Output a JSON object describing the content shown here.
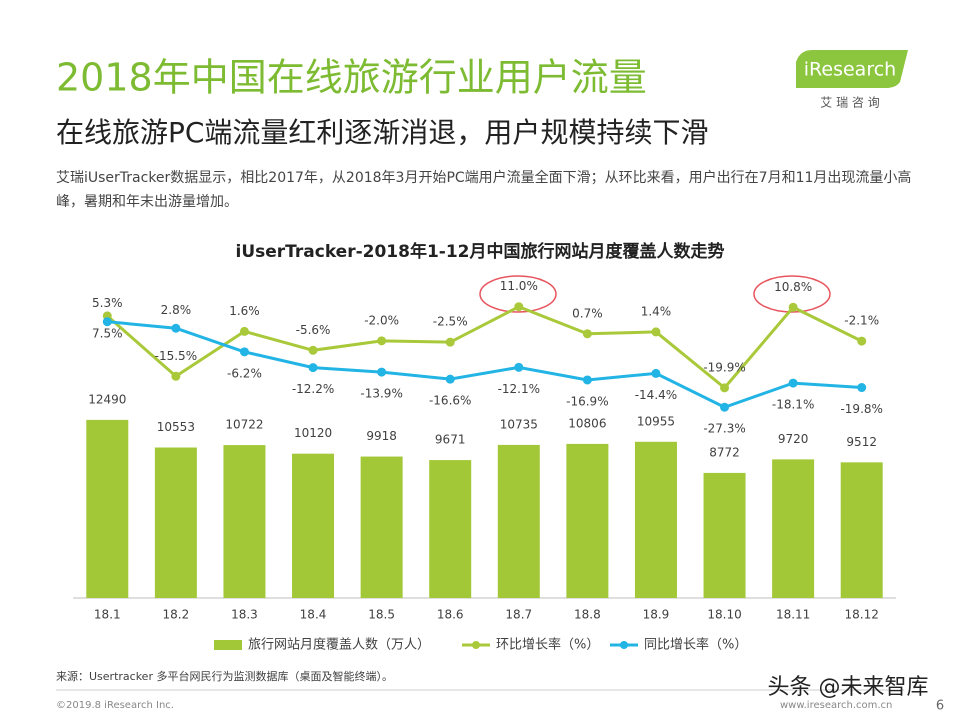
{
  "header": {
    "title": "2018年中国在线旅游行业用户流量",
    "subtitle": "在线旅游PC端流量红利逐渐消退，用户规模持续下滑",
    "description": "艾瑞iUserTracker数据显示，相比2017年，从2018年3月开始PC端用户流量全面下滑；从环比来看，用户出行在7月和11月出现流量小高峰，暑期和年末出游量增加。",
    "logo": "iResearch",
    "logo_sub": "艾 瑞 咨 询"
  },
  "chart_data": {
    "type": "bar",
    "title": "iUserTracker-2018年1-12月中国旅行网站月度覆盖人数走势",
    "categories": [
      "18.1",
      "18.2",
      "18.3",
      "18.4",
      "18.5",
      "18.6",
      "18.7",
      "18.8",
      "18.9",
      "18.10",
      "18.11",
      "18.12"
    ],
    "ylim": [
      0,
      23000
    ],
    "y2lim": [
      -100,
      25
    ],
    "legend": "bottom",
    "series": [
      {
        "name": "旅行网站月度覆盖人数（万人）",
        "type": "bar",
        "color": "#a2c837",
        "values": [
          12490,
          10553,
          10722,
          10120,
          9918,
          9671,
          10735,
          10806,
          10955,
          8772,
          9720,
          9512
        ]
      },
      {
        "name": "环比增长率（%）",
        "type": "line",
        "axis": "y2",
        "color": "#a9c93a",
        "values": [
          7.5,
          -15.5,
          1.6,
          -5.6,
          -2.0,
          -2.5,
          11.0,
          0.7,
          1.4,
          -19.9,
          10.8,
          -2.1
        ],
        "value_labels": [
          "7.5%",
          "-15.5%",
          "1.6%",
          "-5.6%",
          "-2.0%",
          "-2.5%",
          "11.0%",
          "0.7%",
          "1.4%",
          "-19.9%",
          "10.8%",
          "-2.1%"
        ]
      },
      {
        "name": "同比增长率（%）",
        "type": "line",
        "axis": "y2",
        "color": "#22b4e4",
        "values": [
          5.3,
          2.8,
          -6.2,
          -12.2,
          -13.9,
          -16.6,
          -12.1,
          -16.9,
          -14.4,
          -27.3,
          -18.1,
          -19.8
        ],
        "value_labels": [
          "5.3%",
          "2.8%",
          "-6.2%",
          "-12.2%",
          "-13.9%",
          "-16.6%",
          "-12.1%",
          "-16.9%",
          "-14.4%",
          "-27.3%",
          "-18.1%",
          "-19.8%"
        ]
      }
    ]
  },
  "footer": {
    "source": "来源：Usertracker 多平台网民行为监测数据库（桌面及智能终端）。",
    "copyright": "©2019.8 iResearch Inc.",
    "website": "www.iresearch.com.cn",
    "page": "6",
    "watermark": "头条 @未来智库"
  }
}
